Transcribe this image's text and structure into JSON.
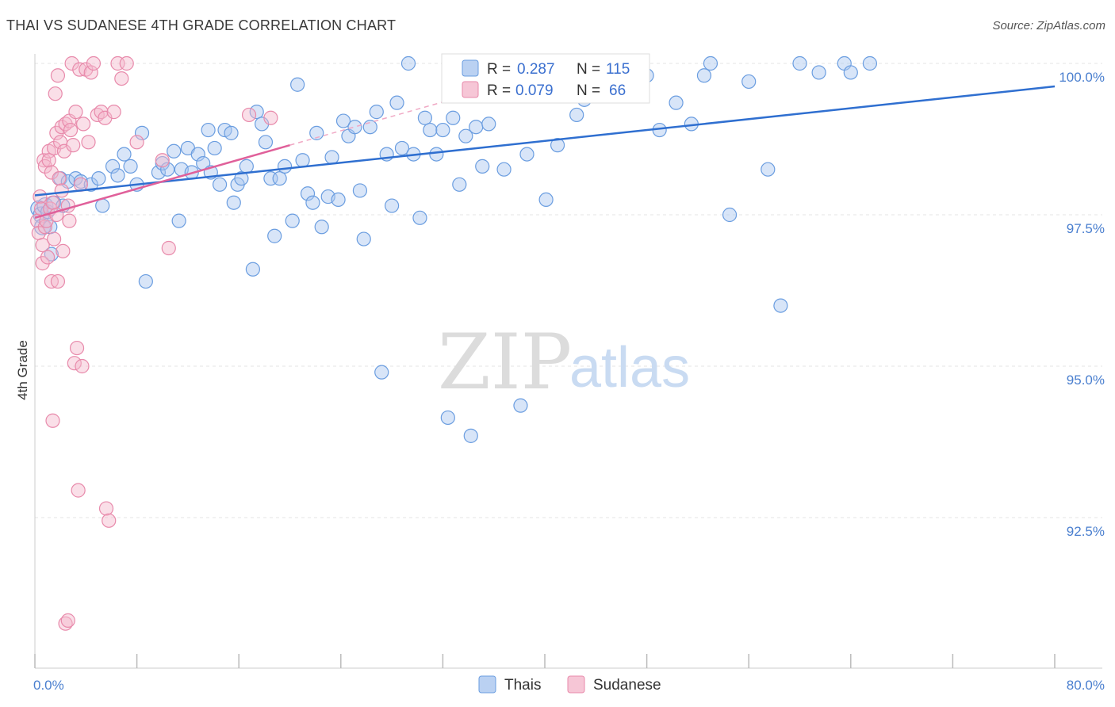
{
  "chart_data": {
    "type": "scatter",
    "title": "THAI VS SUDANESE 4TH GRADE CORRELATION CHART",
    "source": "Source: ZipAtlas.com",
    "xlabel": "",
    "ylabel": "4th Grade",
    "xlim": [
      0,
      80
    ],
    "ylim": [
      90.0,
      100.7
    ],
    "x_tick_labels": [
      "0.0%",
      "80.0%"
    ],
    "y_ticks": [
      92.5,
      95.0,
      97.5,
      100.0
    ],
    "y_tick_labels": [
      "92.5%",
      "95.0%",
      "97.5%",
      "100.0%"
    ],
    "grid": true,
    "watermark": {
      "zip": "ZIP",
      "atlas": "atlas"
    },
    "legend": {
      "r_label": "R =",
      "n_label": "N =",
      "entries": [
        {
          "r": "0.287",
          "n": "115"
        },
        {
          "r": "0.079",
          "n": "66"
        }
      ]
    },
    "series": [
      {
        "name": "Thais",
        "color": "#6a9de0",
        "fill": "#a9c6ef",
        "trend": {
          "x": [
            0,
            80
          ],
          "y": [
            97.82,
            99.62
          ],
          "color": "#2f6fd0"
        },
        "points": [
          [
            0.3,
            97.6
          ],
          [
            0.5,
            97.5
          ],
          [
            0.6,
            97.3
          ],
          [
            0.8,
            97.65
          ],
          [
            1.0,
            97.55
          ],
          [
            1.2,
            97.3
          ],
          [
            1.3,
            96.85
          ],
          [
            1.5,
            97.7
          ],
          [
            2.0,
            98.1
          ],
          [
            2.2,
            97.65
          ],
          [
            2.6,
            98.05
          ],
          [
            3.2,
            98.1
          ],
          [
            3.6,
            98.05
          ],
          [
            4.4,
            98.0
          ],
          [
            5.0,
            98.1
          ],
          [
            5.3,
            97.65
          ],
          [
            6.1,
            98.3
          ],
          [
            6.5,
            98.15
          ],
          [
            7.0,
            98.5
          ],
          [
            7.5,
            98.3
          ],
          [
            8.0,
            98.0
          ],
          [
            8.4,
            98.85
          ],
          [
            8.7,
            96.4
          ],
          [
            9.7,
            98.2
          ],
          [
            10.0,
            98.35
          ],
          [
            10.4,
            98.25
          ],
          [
            10.9,
            98.55
          ],
          [
            11.3,
            97.4
          ],
          [
            11.5,
            98.25
          ],
          [
            12.0,
            98.6
          ],
          [
            12.3,
            98.2
          ],
          [
            12.8,
            98.5
          ],
          [
            13.2,
            98.35
          ],
          [
            13.6,
            98.9
          ],
          [
            13.8,
            98.2
          ],
          [
            14.1,
            98.6
          ],
          [
            14.5,
            98.0
          ],
          [
            14.9,
            98.9
          ],
          [
            15.4,
            98.85
          ],
          [
            15.6,
            97.7
          ],
          [
            15.9,
            98.0
          ],
          [
            16.2,
            98.1
          ],
          [
            16.6,
            98.3
          ],
          [
            17.1,
            96.6
          ],
          [
            17.4,
            99.2
          ],
          [
            17.8,
            99.0
          ],
          [
            18.1,
            98.7
          ],
          [
            18.5,
            98.1
          ],
          [
            18.8,
            97.15
          ],
          [
            19.2,
            98.1
          ],
          [
            19.6,
            98.3
          ],
          [
            20.2,
            97.4
          ],
          [
            20.6,
            99.65
          ],
          [
            21.0,
            98.4
          ],
          [
            21.4,
            97.85
          ],
          [
            21.8,
            97.7
          ],
          [
            22.1,
            98.85
          ],
          [
            22.5,
            97.3
          ],
          [
            23.0,
            97.8
          ],
          [
            23.3,
            98.45
          ],
          [
            23.8,
            97.75
          ],
          [
            24.2,
            99.05
          ],
          [
            24.6,
            98.8
          ],
          [
            25.1,
            98.95
          ],
          [
            25.5,
            97.9
          ],
          [
            25.8,
            97.1
          ],
          [
            26.3,
            98.95
          ],
          [
            26.8,
            99.2
          ],
          [
            27.2,
            94.9
          ],
          [
            27.6,
            98.5
          ],
          [
            28.0,
            97.65
          ],
          [
            28.4,
            99.35
          ],
          [
            28.8,
            98.6
          ],
          [
            29.3,
            100.0
          ],
          [
            29.7,
            98.5
          ],
          [
            30.2,
            97.45
          ],
          [
            30.6,
            99.1
          ],
          [
            31.0,
            98.9
          ],
          [
            31.5,
            98.5
          ],
          [
            32.0,
            98.9
          ],
          [
            32.4,
            94.15
          ],
          [
            32.8,
            99.1
          ],
          [
            33.3,
            98.0
          ],
          [
            33.8,
            98.8
          ],
          [
            34.2,
            93.85
          ],
          [
            34.6,
            98.95
          ],
          [
            35.1,
            98.3
          ],
          [
            35.6,
            99.0
          ],
          [
            36.2,
            100.0
          ],
          [
            36.8,
            98.25
          ],
          [
            37.4,
            99.7
          ],
          [
            38.1,
            94.35
          ],
          [
            38.6,
            98.5
          ],
          [
            39.4,
            99.5
          ],
          [
            40.1,
            97.75
          ],
          [
            41.0,
            98.65
          ],
          [
            41.8,
            99.7
          ],
          [
            42.5,
            99.15
          ],
          [
            43.1,
            99.4
          ],
          [
            44.0,
            100.0
          ],
          [
            45.5,
            99.75
          ],
          [
            46.7,
            100.0
          ],
          [
            48.0,
            99.8
          ],
          [
            49.0,
            98.9
          ],
          [
            50.3,
            99.35
          ],
          [
            51.5,
            99.0
          ],
          [
            52.5,
            99.8
          ],
          [
            53.0,
            100.0
          ],
          [
            54.5,
            97.5
          ],
          [
            56.0,
            99.7
          ],
          [
            57.5,
            98.25
          ],
          [
            58.5,
            96.0
          ],
          [
            60.0,
            100.0
          ],
          [
            61.5,
            99.85
          ],
          [
            63.5,
            100.0
          ],
          [
            64.0,
            99.85
          ],
          [
            65.5,
            100.0
          ]
        ]
      },
      {
        "name": "Sudanese",
        "color": "#e88aab",
        "fill": "#f4b8cc",
        "trend": {
          "x": [
            0,
            20
          ],
          "y": [
            97.45,
            98.65
          ],
          "color": "#e0609a"
        },
        "trend_ext": {
          "x": [
            20,
            36
          ],
          "y": [
            98.65,
            99.6
          ]
        },
        "points": [
          [
            0.2,
            97.4
          ],
          [
            0.3,
            97.2
          ],
          [
            0.4,
            97.8
          ],
          [
            0.5,
            97.6
          ],
          [
            0.6,
            97.0
          ],
          [
            0.6,
            96.7
          ],
          [
            0.7,
            98.4
          ],
          [
            0.8,
            98.3
          ],
          [
            0.8,
            97.3
          ],
          [
            0.9,
            97.4
          ],
          [
            1.0,
            96.8
          ],
          [
            1.1,
            98.55
          ],
          [
            1.1,
            98.4
          ],
          [
            1.2,
            97.6
          ],
          [
            1.3,
            98.2
          ],
          [
            1.3,
            96.4
          ],
          [
            1.4,
            97.7
          ],
          [
            1.4,
            94.1
          ],
          [
            1.5,
            98.6
          ],
          [
            1.5,
            97.1
          ],
          [
            1.6,
            99.5
          ],
          [
            1.7,
            98.85
          ],
          [
            1.7,
            97.5
          ],
          [
            1.8,
            99.8
          ],
          [
            1.8,
            96.4
          ],
          [
            1.9,
            98.1
          ],
          [
            2.0,
            98.7
          ],
          [
            2.1,
            97.9
          ],
          [
            2.1,
            98.95
          ],
          [
            2.2,
            96.9
          ],
          [
            2.3,
            98.55
          ],
          [
            2.4,
            99.0
          ],
          [
            2.4,
            90.75
          ],
          [
            2.6,
            97.65
          ],
          [
            2.6,
            90.8
          ],
          [
            2.7,
            97.4
          ],
          [
            2.7,
            99.05
          ],
          [
            2.8,
            98.9
          ],
          [
            2.9,
            100.0
          ],
          [
            3.0,
            98.65
          ],
          [
            3.1,
            95.05
          ],
          [
            3.2,
            99.2
          ],
          [
            3.3,
            95.3
          ],
          [
            3.4,
            92.95
          ],
          [
            3.5,
            99.9
          ],
          [
            3.6,
            98.0
          ],
          [
            3.7,
            95.0
          ],
          [
            3.8,
            99.0
          ],
          [
            4.0,
            99.9
          ],
          [
            4.2,
            98.7
          ],
          [
            4.4,
            99.85
          ],
          [
            4.6,
            100.0
          ],
          [
            4.9,
            99.15
          ],
          [
            5.2,
            99.2
          ],
          [
            5.5,
            99.1
          ],
          [
            5.6,
            92.65
          ],
          [
            5.8,
            92.45
          ],
          [
            6.2,
            99.2
          ],
          [
            6.5,
            100.0
          ],
          [
            6.8,
            99.75
          ],
          [
            7.2,
            100.0
          ],
          [
            8.0,
            98.7
          ],
          [
            10.0,
            98.4
          ],
          [
            10.5,
            96.95
          ],
          [
            16.8,
            99.15
          ],
          [
            18.5,
            99.1
          ]
        ]
      }
    ]
  }
}
